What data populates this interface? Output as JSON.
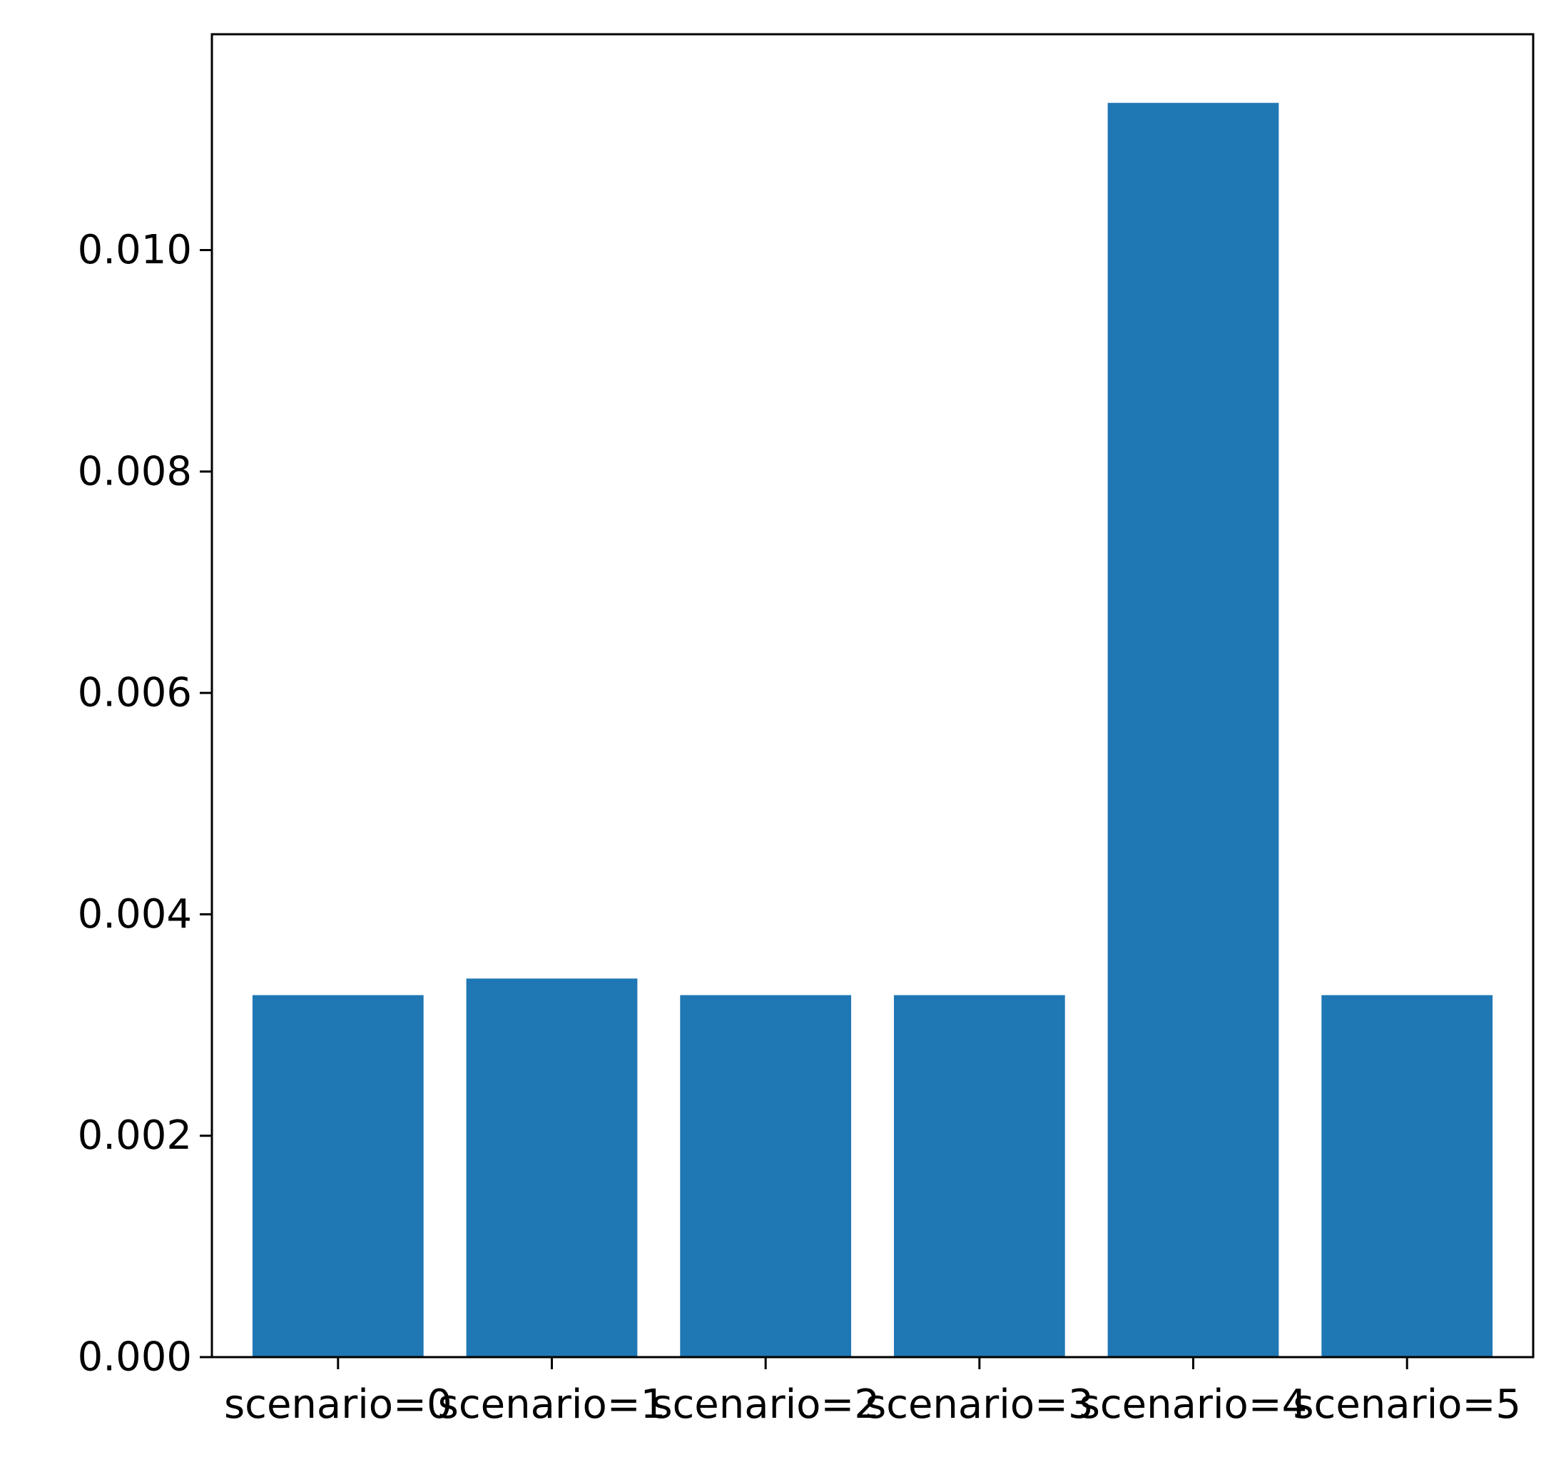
{
  "chart_data": {
    "type": "bar",
    "title": "",
    "xlabel": "",
    "ylabel": "",
    "categories": [
      "scenario=0",
      "scenario=1",
      "scenario=2",
      "scenario=3",
      "scenario=4",
      "scenario=5"
    ],
    "values": [
      0.00327,
      0.00342,
      0.00327,
      0.00327,
      0.01133,
      0.00327
    ],
    "ylim": [
      0,
      0.01195
    ],
    "yticks": [
      0.0,
      0.002,
      0.004,
      0.006,
      0.008,
      0.01
    ],
    "ytick_labels": [
      "0.000",
      "0.002",
      "0.004",
      "0.006",
      "0.008",
      "0.010"
    ],
    "bar_color": "#1f77b4",
    "grid": false,
    "legend": "none"
  }
}
